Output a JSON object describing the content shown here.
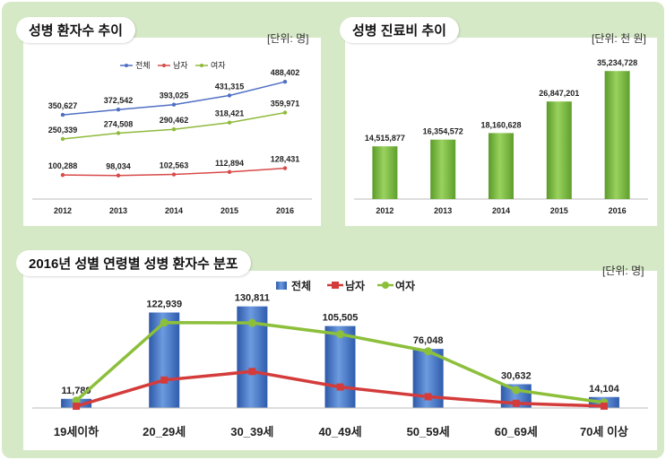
{
  "chart_data": [
    {
      "type": "line",
      "title": "성병 환자수 추이",
      "unit": "[단위: 명]",
      "categories": [
        "2012",
        "2013",
        "2014",
        "2015",
        "2016"
      ],
      "series": [
        {
          "name": "전체",
          "color": "#4f6fc4",
          "values": [
            350627,
            372542,
            393025,
            431315,
            488402
          ]
        },
        {
          "name": "남자",
          "color": "#d94a4a",
          "values": [
            100288,
            98034,
            102563,
            112894,
            128431
          ]
        },
        {
          "name": "여자",
          "color": "#8fba3c",
          "values": [
            250339,
            274508,
            290462,
            318421,
            359971
          ]
        }
      ],
      "value_labels": {
        "전체": [
          "350,627",
          "372,542",
          "393,025",
          "431,315",
          "488,402"
        ],
        "남자": [
          "100,288",
          "98,034",
          "102,563",
          "112,894",
          "128,431"
        ],
        "여자": [
          "250,339",
          "274,508",
          "290,462",
          "318,421",
          "359,971"
        ]
      },
      "ylim": [
        0,
        560000
      ],
      "legend": "top"
    },
    {
      "type": "bar",
      "title": "성병 진료비 추이",
      "unit": "[단위: 천 원]",
      "categories": [
        "2012",
        "2013",
        "2014",
        "2015",
        "2016"
      ],
      "values": [
        14515877,
        16354572,
        18160628,
        26847201,
        35234728
      ],
      "value_labels": [
        "14,515,877",
        "16,354,572",
        "18,160,628",
        "26,847,201",
        "35,234,728"
      ],
      "color": "#7cc043",
      "ylim": [
        0,
        38000000
      ]
    },
    {
      "type": "bar",
      "title": "2016년 성별 연령별 성병 환자수 분포",
      "unit": "[단위: 명]",
      "categories": [
        "19세이하",
        "20_29세",
        "30_39세",
        "40_49세",
        "50_59세",
        "60_69세",
        "70세 이상"
      ],
      "series": [
        {
          "name": "전체",
          "kind": "bar",
          "color": "#3f6fc0",
          "values": [
            11789,
            122939,
            130811,
            105505,
            76048,
            30632,
            14104
          ]
        },
        {
          "name": "남자",
          "kind": "line",
          "color": "#d43b3b",
          "values": [
            2300,
            36000,
            47000,
            27000,
            14500,
            6000,
            2400
          ]
        },
        {
          "name": "여자",
          "kind": "line",
          "color": "#8cbf3a",
          "values": [
            9500,
            110000,
            109500,
            95000,
            73000,
            23000,
            7000
          ]
        }
      ],
      "value_labels": [
        "11,789",
        "122,939",
        "130,811",
        "105,505",
        "76,048",
        "30,632",
        "14,104"
      ],
      "ylim": [
        0,
        142000
      ],
      "legend": "top"
    }
  ]
}
